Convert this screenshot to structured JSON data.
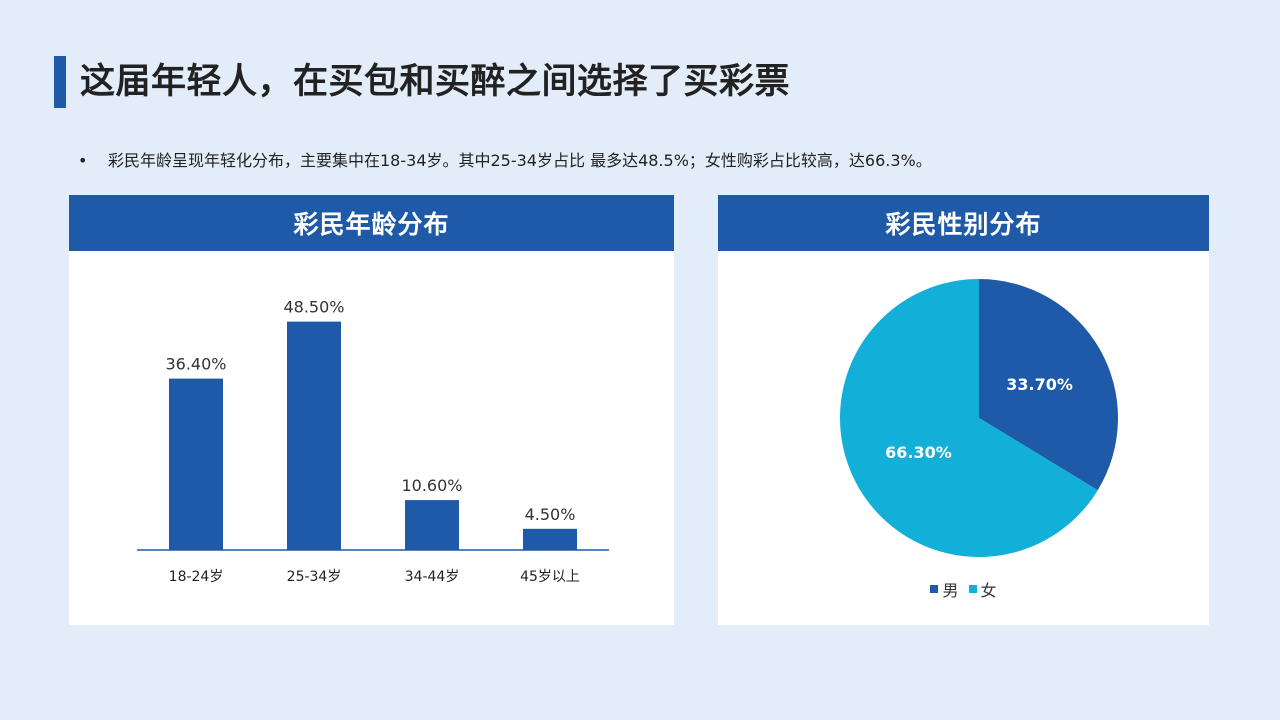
{
  "page": {
    "title": "这届年轻人，在买包和买醉之间选择了买彩票",
    "bullet": "彩民年龄呈现年轻化分布，主要集中在18-34岁。其中25-34岁占比 最多达48.5%；女性购彩占比较高，达66.3%。"
  },
  "colors": {
    "accent": "#1f5aa8",
    "pie_female": "#12b0d8",
    "background": "#e3edf9"
  },
  "chart_data": [
    {
      "type": "bar",
      "title": "彩民年龄分布",
      "categories": [
        "18-24岁",
        "25-34岁",
        "34-44岁",
        "45岁以上"
      ],
      "values": [
        36.4,
        48.5,
        10.6,
        4.5
      ],
      "data_labels": [
        "36.40%",
        "48.50%",
        "10.60%",
        "4.50%"
      ],
      "ylim": [
        0,
        55
      ],
      "grid": false,
      "color": "#1f5aa8"
    },
    {
      "type": "pie",
      "title": "彩民性别分布",
      "categories": [
        "男",
        "女"
      ],
      "values": [
        33.7,
        66.3
      ],
      "data_labels": [
        "33.70%",
        "66.30%"
      ],
      "colors": [
        "#1f5aa8",
        "#12b0d8"
      ],
      "legend": "bottom"
    }
  ]
}
